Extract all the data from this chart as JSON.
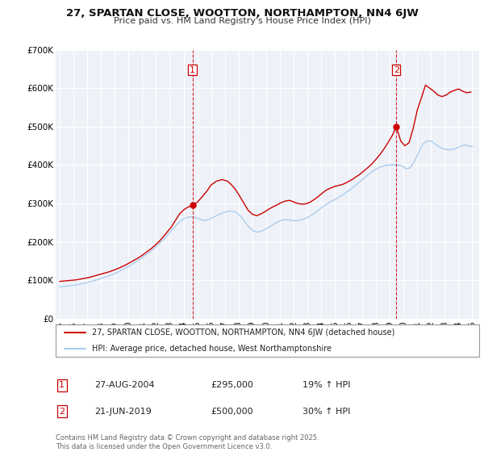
{
  "title": "27, SPARTAN CLOSE, WOOTTON, NORTHAMPTON, NN4 6JW",
  "subtitle": "Price paid vs. HM Land Registry's House Price Index (HPI)",
  "red_label": "27, SPARTAN CLOSE, WOOTTON, NORTHAMPTON, NN4 6JW (detached house)",
  "blue_label": "HPI: Average price, detached house, West Northamptonshire",
  "annotation1_label": "1",
  "annotation1_date": "27-AUG-2004",
  "annotation1_price": "£295,000",
  "annotation1_hpi": "19% ↑ HPI",
  "annotation2_label": "2",
  "annotation2_date": "21-JUN-2019",
  "annotation2_price": "£500,000",
  "annotation2_hpi": "30% ↑ HPI",
  "footer": "Contains HM Land Registry data © Crown copyright and database right 2025.\nThis data is licensed under the Open Government Licence v3.0.",
  "red_color": "#cc0000",
  "blue_color": "#aaccee",
  "background_color": "#eef2f8",
  "grid_color": "#ffffff",
  "ylim": [
    0,
    700000
  ],
  "yticks": [
    0,
    100000,
    200000,
    300000,
    400000,
    500000,
    600000,
    700000
  ],
  "ytick_labels": [
    "£0",
    "£100K",
    "£200K",
    "£300K",
    "£400K",
    "£500K",
    "£600K",
    "£700K"
  ],
  "xlim_start": 1994.7,
  "xlim_end": 2025.5,
  "marker1_x": 2004.65,
  "marker1_y": 295000,
  "marker2_x": 2019.47,
  "marker2_y": 500000,
  "vline1_x": 2004.65,
  "vline2_x": 2019.47,
  "red_x": [
    1995.0,
    1995.3,
    1995.6,
    1995.9,
    1996.2,
    1996.5,
    1996.8,
    1997.1,
    1997.4,
    1997.7,
    1998.0,
    1998.3,
    1998.6,
    1998.9,
    1999.2,
    1999.5,
    1999.8,
    2000.1,
    2000.4,
    2000.7,
    2001.0,
    2001.3,
    2001.6,
    2001.9,
    2002.2,
    2002.5,
    2002.8,
    2003.1,
    2003.4,
    2003.7,
    2004.0,
    2004.3,
    2004.65,
    2005.0,
    2005.3,
    2005.7,
    2006.0,
    2006.4,
    2006.8,
    2007.2,
    2007.5,
    2007.8,
    2008.1,
    2008.4,
    2008.7,
    2009.0,
    2009.3,
    2009.6,
    2009.9,
    2010.2,
    2010.5,
    2010.8,
    2011.1,
    2011.4,
    2011.7,
    2012.0,
    2012.3,
    2012.6,
    2012.9,
    2013.2,
    2013.5,
    2013.8,
    2014.1,
    2014.4,
    2014.7,
    2015.0,
    2015.3,
    2015.6,
    2015.9,
    2016.2,
    2016.5,
    2016.8,
    2017.1,
    2017.4,
    2017.7,
    2018.0,
    2018.3,
    2018.6,
    2018.9,
    2019.2,
    2019.47,
    2019.8,
    2020.1,
    2020.4,
    2020.7,
    2021.0,
    2021.3,
    2021.6,
    2021.9,
    2022.2,
    2022.5,
    2022.8,
    2023.1,
    2023.4,
    2023.7,
    2024.0,
    2024.3,
    2024.6,
    2024.9
  ],
  "red_y": [
    97000,
    98000,
    99000,
    100000,
    101000,
    103000,
    105000,
    107000,
    110000,
    113000,
    116000,
    119000,
    122000,
    126000,
    130000,
    135000,
    140000,
    146000,
    152000,
    158000,
    165000,
    173000,
    181000,
    190000,
    200000,
    212000,
    225000,
    238000,
    255000,
    272000,
    283000,
    290000,
    295000,
    303000,
    315000,
    332000,
    348000,
    358000,
    362000,
    358000,
    348000,
    335000,
    318000,
    300000,
    282000,
    272000,
    268000,
    272000,
    278000,
    285000,
    291000,
    296000,
    302000,
    306000,
    308000,
    304000,
    300000,
    298000,
    299000,
    303000,
    310000,
    318000,
    327000,
    335000,
    340000,
    344000,
    347000,
    350000,
    355000,
    361000,
    368000,
    375000,
    384000,
    393000,
    403000,
    415000,
    428000,
    443000,
    460000,
    478000,
    500000,
    462000,
    450000,
    458000,
    495000,
    543000,
    575000,
    608000,
    600000,
    592000,
    582000,
    578000,
    582000,
    590000,
    594000,
    598000,
    592000,
    588000,
    590000
  ],
  "blue_x": [
    1995.0,
    1995.3,
    1995.6,
    1995.9,
    1996.2,
    1996.5,
    1996.8,
    1997.1,
    1997.4,
    1997.7,
    1998.0,
    1998.3,
    1998.6,
    1998.9,
    1999.2,
    1999.5,
    1999.8,
    2000.1,
    2000.4,
    2000.7,
    2001.0,
    2001.3,
    2001.6,
    2001.9,
    2002.2,
    2002.5,
    2002.8,
    2003.1,
    2003.4,
    2003.7,
    2004.0,
    2004.3,
    2004.6,
    2004.9,
    2005.2,
    2005.5,
    2005.8,
    2006.1,
    2006.4,
    2006.7,
    2007.0,
    2007.3,
    2007.6,
    2007.9,
    2008.2,
    2008.5,
    2008.8,
    2009.1,
    2009.4,
    2009.7,
    2010.0,
    2010.3,
    2010.6,
    2010.9,
    2011.2,
    2011.5,
    2011.8,
    2012.1,
    2012.4,
    2012.7,
    2013.0,
    2013.3,
    2013.6,
    2013.9,
    2014.2,
    2014.5,
    2014.8,
    2015.1,
    2015.4,
    2015.7,
    2016.0,
    2016.3,
    2016.6,
    2016.9,
    2017.2,
    2017.5,
    2017.8,
    2018.1,
    2018.4,
    2018.7,
    2019.0,
    2019.3,
    2019.6,
    2019.9,
    2020.2,
    2020.5,
    2020.8,
    2021.1,
    2021.4,
    2021.7,
    2022.0,
    2022.3,
    2022.6,
    2022.9,
    2023.2,
    2023.5,
    2023.8,
    2024.1,
    2024.4,
    2024.7,
    2025.0
  ],
  "blue_y": [
    83000,
    84000,
    85000,
    86000,
    88000,
    90000,
    92000,
    95000,
    98000,
    101000,
    105000,
    108000,
    112000,
    116000,
    121000,
    126000,
    132000,
    138000,
    145000,
    152000,
    159000,
    167000,
    175000,
    184000,
    194000,
    205000,
    216000,
    228000,
    241000,
    252000,
    260000,
    264000,
    265000,
    263000,
    259000,
    255000,
    258000,
    263000,
    268000,
    273000,
    277000,
    280000,
    280000,
    275000,
    265000,
    250000,
    237000,
    228000,
    225000,
    228000,
    234000,
    240000,
    247000,
    253000,
    257000,
    258000,
    256000,
    255000,
    256000,
    259000,
    263000,
    269000,
    277000,
    285000,
    293000,
    300000,
    306000,
    312000,
    318000,
    325000,
    333000,
    341000,
    350000,
    359000,
    368000,
    377000,
    385000,
    391000,
    396000,
    399000,
    400000,
    400000,
    400000,
    397000,
    390000,
    393000,
    410000,
    432000,
    455000,
    462000,
    462000,
    455000,
    447000,
    442000,
    440000,
    440000,
    443000,
    448000,
    452000,
    450000,
    448000
  ]
}
